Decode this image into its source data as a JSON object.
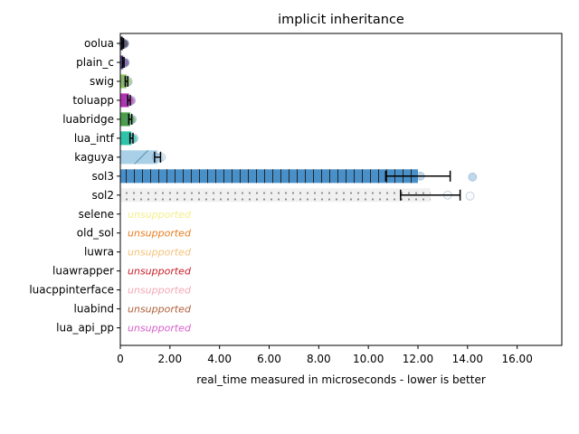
{
  "chart_data": {
    "type": "bar",
    "orientation": "horizontal",
    "title": "implicit inheritance",
    "xlabel": "real_time measured in microseconds - lower is better",
    "xlim": [
      0,
      17.8
    ],
    "xticks": [
      "0",
      "2.00",
      "4.00",
      "6.00",
      "8.00",
      "10.00",
      "12.00",
      "14.00",
      "16.00"
    ],
    "xtick_values": [
      0,
      2,
      4,
      6,
      8,
      10,
      12,
      14,
      16
    ],
    "unsupported_text": "unsupported",
    "bars": [
      {
        "name": "oolua",
        "value": 0.1,
        "err": 0.03,
        "color": "#2a1f3d",
        "pattern": "none",
        "points": [
          0.12,
          0.15,
          0.18
        ]
      },
      {
        "name": "plain_c",
        "value": 0.12,
        "err": 0.03,
        "color": "#5c3d8f",
        "pattern": "none",
        "points": [
          0.14,
          0.17,
          0.2
        ]
      },
      {
        "name": "swig",
        "value": 0.25,
        "err": 0.05,
        "color": "#8fbf5f",
        "pattern": "none",
        "points": [
          0.22,
          0.28,
          0.32
        ]
      },
      {
        "name": "toluapp",
        "value": 0.35,
        "err": 0.05,
        "color": "#b32fb3",
        "pattern": "none",
        "points": [
          0.35,
          0.4,
          0.45
        ]
      },
      {
        "name": "luabridge",
        "value": 0.4,
        "err": 0.06,
        "color": "#4a9e4a",
        "pattern": "none",
        "points": [
          0.38,
          0.43,
          0.48
        ]
      },
      {
        "name": "lua_intf",
        "value": 0.45,
        "err": 0.06,
        "color": "#2ec4a8",
        "pattern": "none",
        "points": [
          0.45,
          0.5,
          0.55
        ]
      },
      {
        "name": "kaguya",
        "value": 1.5,
        "err": 0.12,
        "color": "#aad0e8",
        "pattern": "diag",
        "points": [
          1.45,
          1.55,
          1.65
        ]
      },
      {
        "name": "sol3",
        "value": 12.0,
        "err": 1.3,
        "color": "#4a90c8",
        "pattern": "vlines",
        "points": [
          12.1,
          14.2
        ]
      },
      {
        "name": "sol2",
        "value": 12.5,
        "err": 1.2,
        "color": "#f0f0f0",
        "pattern": "dots",
        "points": [
          13.2,
          14.1
        ]
      },
      {
        "name": "selene",
        "unsupported": true,
        "color": "#f5ee8a"
      },
      {
        "name": "old_sol",
        "unsupported": true,
        "color": "#e87d20"
      },
      {
        "name": "luwra",
        "unsupported": true,
        "color": "#f5c27a"
      },
      {
        "name": "luawrapper",
        "unsupported": true,
        "color": "#c8202a"
      },
      {
        "name": "luacppinterface",
        "unsupported": true,
        "color": "#f5a8b8"
      },
      {
        "name": "luabind",
        "unsupported": true,
        "color": "#b0603a"
      },
      {
        "name": "lua_api_pp",
        "unsupported": true,
        "color": "#d65fc8"
      }
    ]
  }
}
